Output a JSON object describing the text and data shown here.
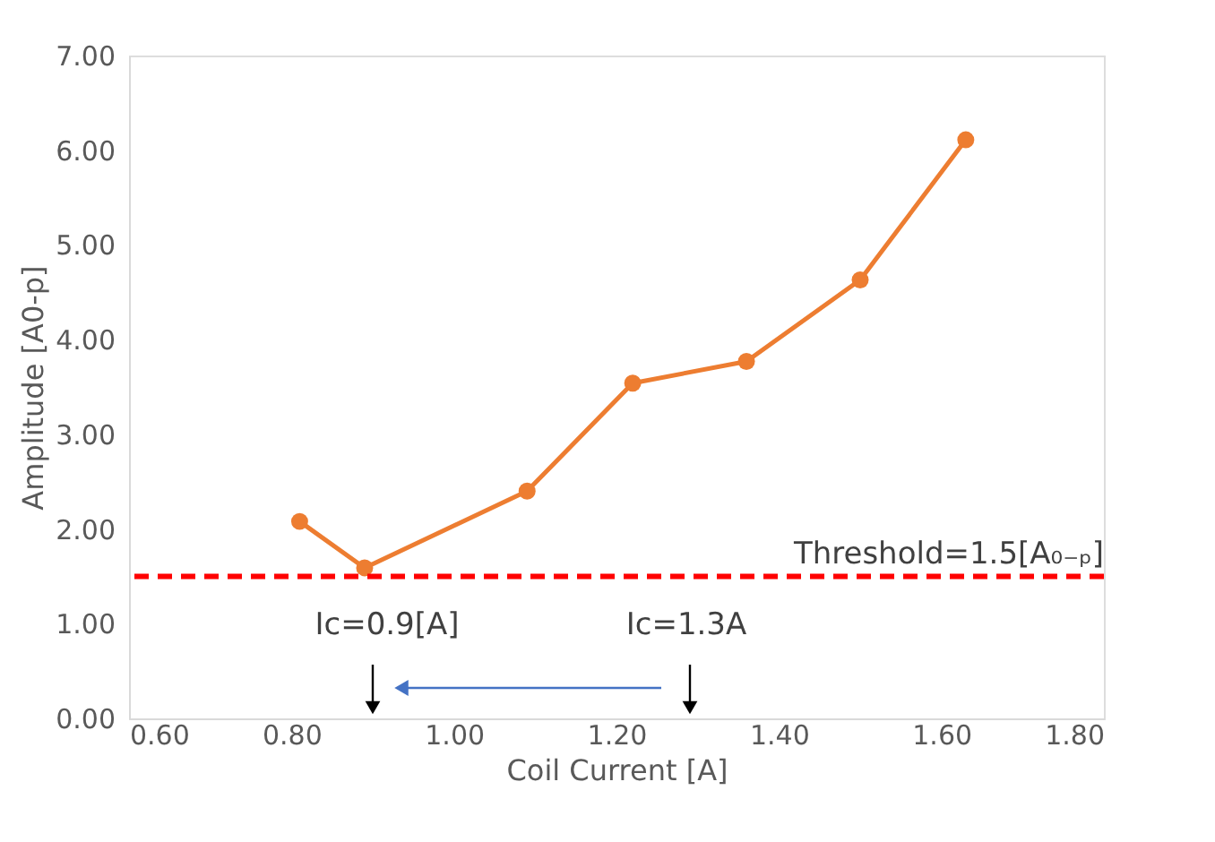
{
  "chart_data": {
    "type": "line",
    "xlabel": "Coil Current [A]",
    "ylabel": "Amplitude [A0-p]",
    "x": [
      0.81,
      0.89,
      1.09,
      1.22,
      1.36,
      1.5,
      1.63
    ],
    "series": [
      {
        "color": "#ed7d31",
        "values": [
          2.08,
          1.59,
          2.4,
          3.54,
          3.77,
          4.63,
          6.11
        ]
      }
    ],
    "xlim": [
      0.6,
      1.8
    ],
    "xticks": [
      {
        "value": 0.6,
        "label": "0.60"
      },
      {
        "value": 0.8,
        "label": "0.80"
      },
      {
        "value": 1.0,
        "label": "1.00"
      },
      {
        "value": 1.2,
        "label": "1.20"
      },
      {
        "value": 1.4,
        "label": "1.40"
      },
      {
        "value": 1.6,
        "label": "1.60"
      },
      {
        "value": 1.8,
        "label": "1.80"
      }
    ],
    "ylim": [
      0,
      7
    ],
    "yticks": [
      {
        "value": 0,
        "label": "0.00"
      },
      {
        "value": 1,
        "label": "1.00"
      },
      {
        "value": 2,
        "label": "2.00"
      },
      {
        "value": 3,
        "label": "3.00"
      },
      {
        "value": 4,
        "label": "4.00"
      },
      {
        "value": 5,
        "label": "5.00"
      },
      {
        "value": 6,
        "label": "6.00"
      },
      {
        "value": 7,
        "label": "7.00"
      }
    ],
    "ref_lines": [
      {
        "axis": "y",
        "value": 1.5,
        "label": "Threshold=1.5[A₀₋ₚ]",
        "color": "#ff0000",
        "line_style": "dashed"
      }
    ],
    "annotations": [
      "Ic=0.9[A]",
      "Ic=1.3A"
    ],
    "marker": "circle",
    "line_style": "solid",
    "grid": false
  }
}
